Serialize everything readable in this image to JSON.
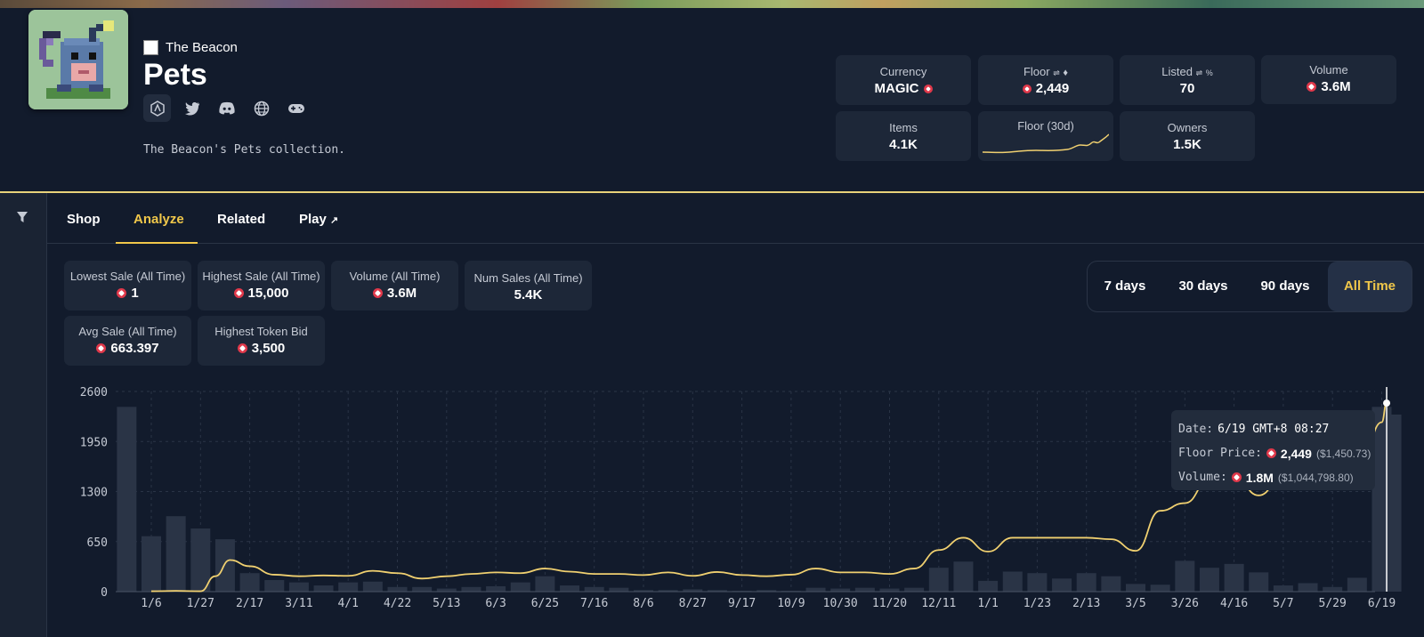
{
  "collection": {
    "brand": "The Beacon",
    "title": "Pets",
    "description": "The Beacon's Pets collection.",
    "socials": [
      "arbitrum-icon",
      "twitter-icon",
      "discord-icon",
      "globe-icon",
      "gamepad-icon"
    ]
  },
  "stats": {
    "currency": {
      "label": "Currency",
      "value": "MAGIC"
    },
    "floor": {
      "label": "Floor",
      "value": "2,449"
    },
    "listed": {
      "label": "Listed",
      "value": "70"
    },
    "volume": {
      "label": "Volume",
      "value": "3.6M"
    },
    "items": {
      "label": "Items",
      "value": "4.1K"
    },
    "floor30": {
      "label": "Floor (30d)"
    },
    "owners": {
      "label": "Owners",
      "value": "1.5K"
    }
  },
  "tabs": [
    {
      "label": "Shop"
    },
    {
      "label": "Analyze",
      "active": true
    },
    {
      "label": "Related"
    },
    {
      "label": "Play"
    }
  ],
  "analyze": {
    "lowest": {
      "label": "Lowest Sale (All Time)",
      "value": "1"
    },
    "highest": {
      "label": "Highest Sale (All Time)",
      "value": "15,000"
    },
    "volume": {
      "label": "Volume (All Time)",
      "value": "3.6M"
    },
    "num_sales": {
      "label": "Num Sales (All Time)",
      "value": "5.4K"
    },
    "avg": {
      "label": "Avg Sale (All Time)",
      "value": "663.397"
    },
    "highest_bid": {
      "label": "Highest Token Bid",
      "value": "3,500"
    }
  },
  "range": {
    "options": [
      "7 days",
      "30 days",
      "90 days",
      "All Time"
    ],
    "selected": "All Time"
  },
  "tooltip": {
    "date_label": "Date:",
    "date_value": "6/19 GMT+8 08:27",
    "floor_label": "Floor Price:",
    "floor_value": "2,449",
    "floor_usd": "($1,450.73)",
    "volume_label": "Volume:",
    "volume_value": "1.8M",
    "volume_usd": "($1,044,798.80)"
  },
  "colors": {
    "accent": "#f0c74a",
    "magic": "#e0384a",
    "background": "#121b2c",
    "card": "#1d2738"
  },
  "chart_data": {
    "type": "line",
    "ylim": [
      0,
      2600
    ],
    "yticks": [
      0,
      650,
      1300,
      1950,
      2600
    ],
    "ytick_labels": [
      "0",
      "650",
      "1300",
      "1950",
      "2600"
    ],
    "xtick_labels": [
      "1/6",
      "1/27",
      "2/17",
      "3/11",
      "4/1",
      "4/22",
      "5/13",
      "6/3",
      "6/25",
      "7/16",
      "8/6",
      "8/27",
      "9/17",
      "10/9",
      "10/30",
      "11/20",
      "12/11",
      "1/1",
      "1/23",
      "2/13",
      "3/5",
      "3/26",
      "4/16",
      "5/7",
      "5/29",
      "6/19"
    ],
    "grid": true,
    "series": [
      {
        "kind": "line",
        "color": "#f0d070",
        "x": [
          0,
          0.5,
          1,
          1.3,
          1.6,
          2,
          2.5,
          3,
          3.5,
          4,
          4.5,
          5,
          5.5,
          6,
          6.5,
          7,
          7.5,
          8,
          8.5,
          9,
          9.5,
          10,
          10.5,
          11,
          11.5,
          12,
          12.5,
          13,
          13.5,
          14,
          14.5,
          15,
          15.5,
          16,
          16.5,
          17,
          17.5,
          18,
          18.5,
          19,
          19.5,
          20,
          20.5,
          21,
          21.5,
          22,
          22.5,
          23,
          23.5,
          24,
          24.5,
          25,
          25.1
        ],
        "y": [
          5,
          10,
          5,
          200,
          410,
          330,
          220,
          200,
          210,
          205,
          270,
          240,
          170,
          200,
          230,
          250,
          240,
          300,
          260,
          230,
          230,
          215,
          250,
          205,
          255,
          215,
          200,
          220,
          300,
          250,
          250,
          230,
          300,
          540,
          700,
          520,
          700,
          700,
          700,
          700,
          680,
          530,
          1050,
          1150,
          1450,
          1500,
          1250,
          1500,
          1450,
          1400,
          1400,
          2200,
          2449
        ]
      },
      {
        "kind": "bar",
        "color": "#2a3446",
        "x": [
          -0.5,
          0,
          0.5,
          1,
          1.5,
          2,
          2.5,
          3,
          3.5,
          4,
          4.5,
          5,
          5.5,
          6,
          6.5,
          7,
          7.5,
          8,
          8.5,
          9,
          9.5,
          10,
          10.5,
          11,
          11.5,
          12,
          12.5,
          13,
          13.5,
          14,
          14.5,
          15,
          15.5,
          16,
          16.5,
          17,
          17.5,
          18,
          18.5,
          19,
          19.5,
          20,
          20.5,
          21,
          21.5,
          22,
          22.5,
          23,
          23.5,
          24,
          24.5,
          25,
          25.2
        ],
        "y": [
          2400,
          720,
          980,
          820,
          680,
          240,
          150,
          120,
          80,
          120,
          130,
          60,
          60,
          40,
          60,
          70,
          120,
          200,
          80,
          60,
          50,
          20,
          20,
          30,
          20,
          10,
          20,
          10,
          50,
          40,
          50,
          40,
          50,
          310,
          390,
          140,
          260,
          240,
          170,
          240,
          200,
          100,
          90,
          400,
          310,
          360,
          250,
          80,
          110,
          60,
          180,
          2400,
          2300
        ]
      }
    ]
  }
}
